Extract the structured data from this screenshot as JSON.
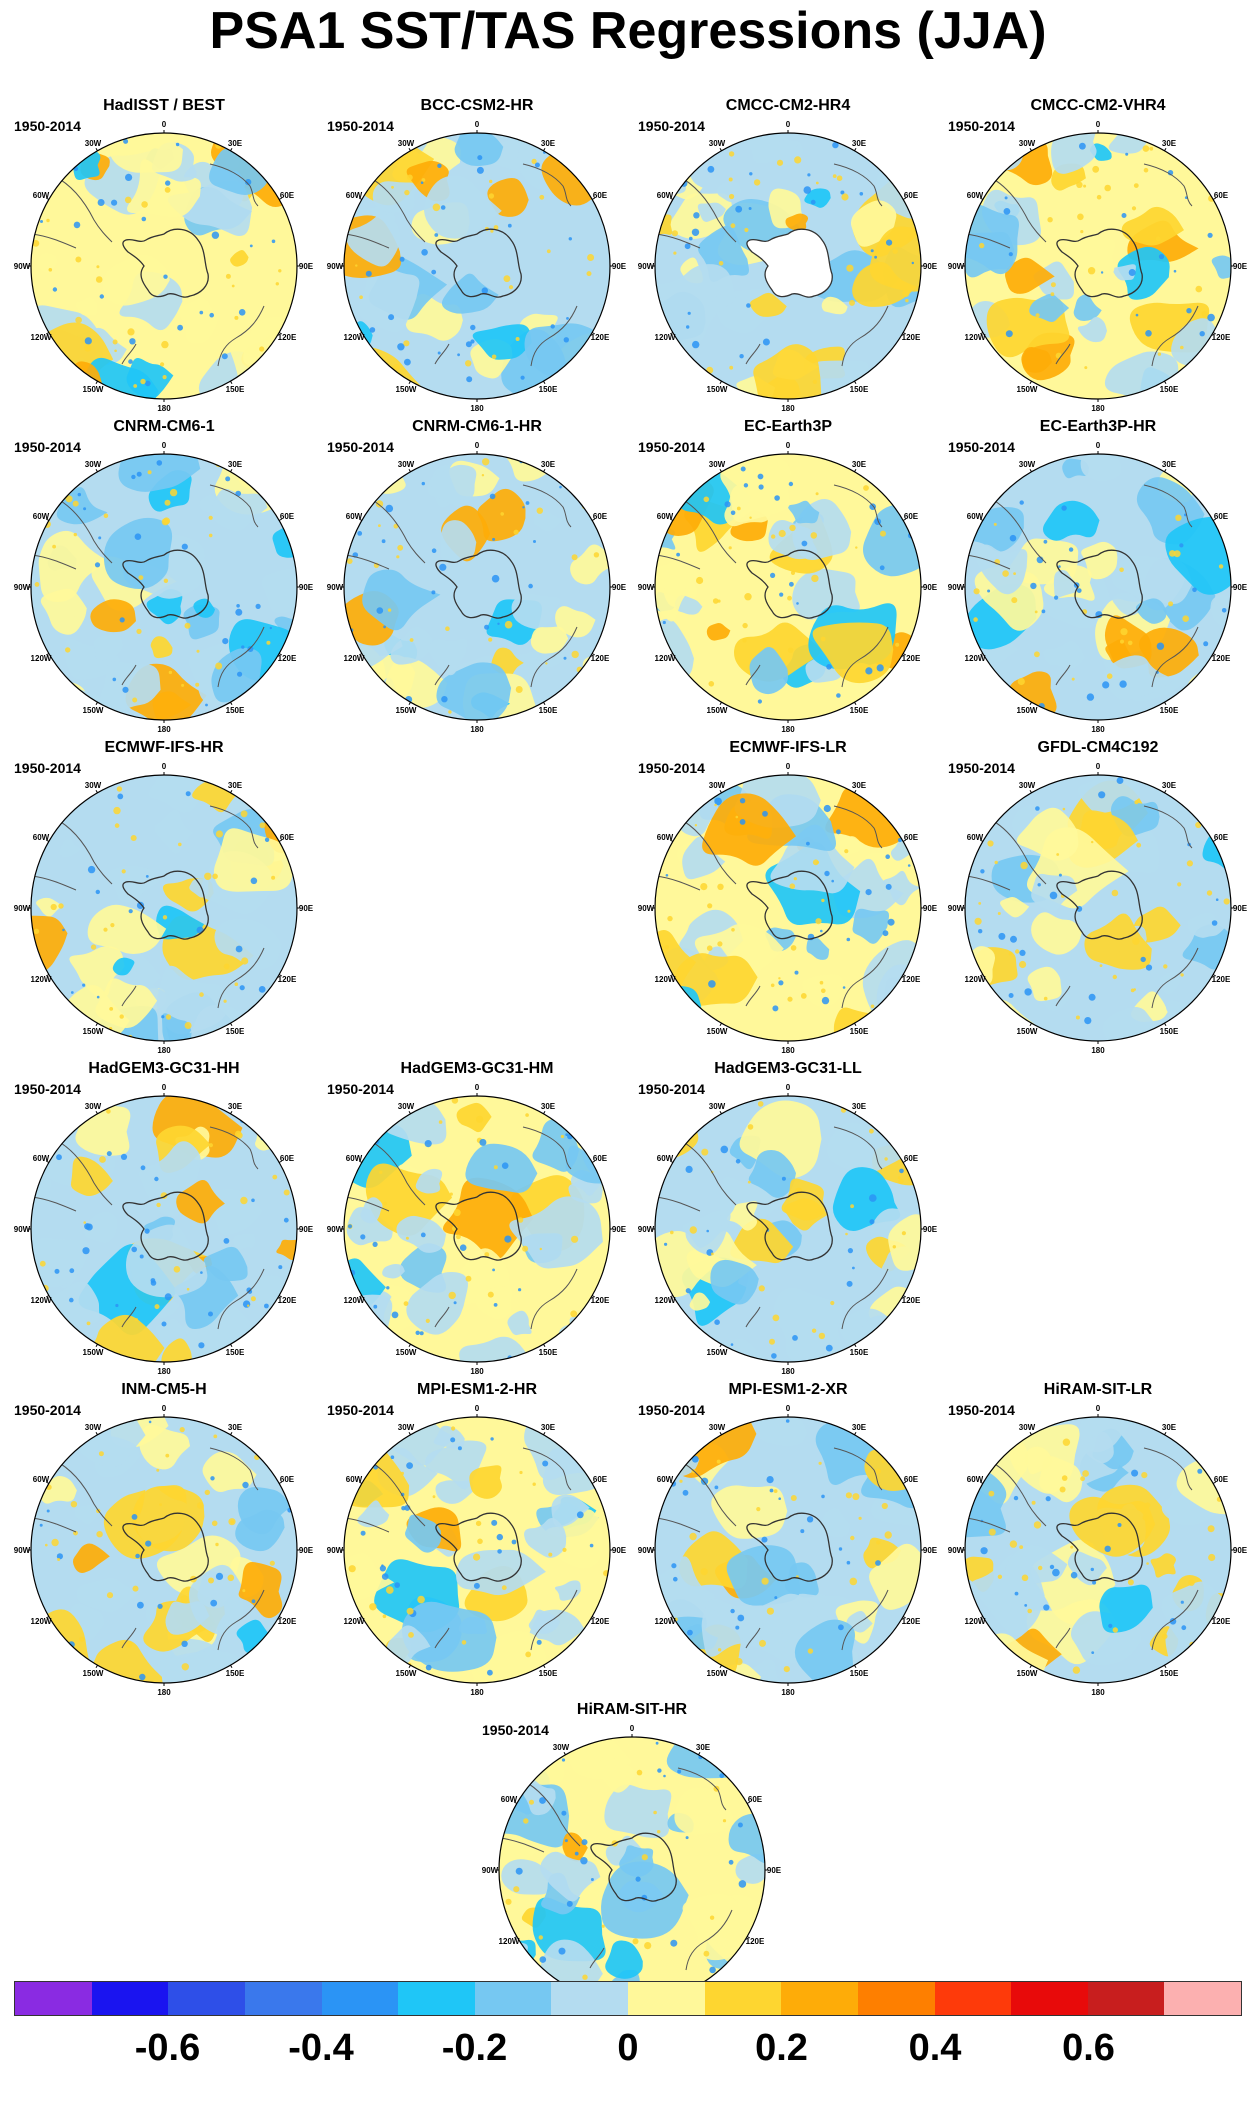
{
  "title": "PSA1 SST/TAS Regressions (JJA)",
  "period": "1950-2014",
  "lon_labels": [
    "0",
    "30E",
    "60E",
    "90E",
    "120E",
    "150E",
    "180",
    "150W",
    "120W",
    "90W",
    "60W",
    "30W"
  ],
  "panels": [
    {
      "id": "hadisst-best",
      "title": "HadISST / BEST",
      "ice_white": false
    },
    {
      "id": "bcc-csm2-hr",
      "title": "BCC-CSM2-HR",
      "ice_white": false
    },
    {
      "id": "cmcc-cm2-hr4",
      "title": "CMCC-CM2-HR4",
      "ice_white": true
    },
    {
      "id": "cmcc-cm2-vhr4",
      "title": "CMCC-CM2-VHR4",
      "ice_white": false
    },
    {
      "id": "cnrm-cm6-1",
      "title": "CNRM-CM6-1",
      "ice_white": false
    },
    {
      "id": "cnrm-cm6-1-hr",
      "title": "CNRM-CM6-1-HR",
      "ice_white": false
    },
    {
      "id": "ec-earth3p",
      "title": "EC-Earth3P",
      "ice_white": false
    },
    {
      "id": "ec-earth3p-hr",
      "title": "EC-Earth3P-HR",
      "ice_white": false
    },
    {
      "id": "ecmwf-ifs-hr",
      "title": "ECMWF-IFS-HR",
      "ice_white": false
    },
    {
      "id": "ecmwf-ifs-lr",
      "title": "ECMWF-IFS-LR",
      "ice_white": false
    },
    {
      "id": "gfdl-cm4c192",
      "title": "GFDL-CM4C192",
      "ice_white": false
    },
    {
      "id": "hadgem3-gc31-hh",
      "title": "HadGEM3-GC31-HH",
      "ice_white": false
    },
    {
      "id": "hadgem3-gc31-hm",
      "title": "HadGEM3-GC31-HM",
      "ice_white": false
    },
    {
      "id": "hadgem3-gc31-ll",
      "title": "HadGEM3-GC31-LL",
      "ice_white": false
    },
    {
      "id": "inm-cm5-h",
      "title": "INM-CM5-H",
      "ice_white": false
    },
    {
      "id": "mpi-esm1-2-hr",
      "title": "MPI-ESM1-2-HR",
      "ice_white": false
    },
    {
      "id": "mpi-esm1-2-xr",
      "title": "MPI-ESM1-2-XR",
      "ice_white": false
    },
    {
      "id": "hiram-sit-lr",
      "title": "HiRAM-SIT-LR",
      "ice_white": false
    },
    {
      "id": "hiram-sit-hr",
      "title": "HiRAM-SIT-HR",
      "ice_white": false
    }
  ],
  "colorbar": {
    "colors": [
      "#8a2be2",
      "#1a14f0",
      "#2e4fe8",
      "#3a78ec",
      "#2b94f5",
      "#1fc6f7",
      "#76c8f2",
      "#b4dcf0",
      "#fff89a",
      "#fed630",
      "#feac08",
      "#fe7f00",
      "#fe3a0a",
      "#e80a0a",
      "#c81e1e",
      "#fcb0b0"
    ],
    "labels": [
      "-0.6",
      "-0.4",
      "-0.2",
      "0",
      "0.2",
      "0.4",
      "0.6"
    ],
    "label_values": [
      -0.6,
      -0.4,
      -0.2,
      0,
      0.2,
      0.4,
      0.6
    ],
    "levels": [
      -0.7,
      -0.6,
      -0.5,
      -0.4,
      -0.3,
      -0.2,
      -0.1,
      0,
      0.1,
      0.2,
      0.3,
      0.4,
      0.5,
      0.6,
      0.7
    ]
  }
}
